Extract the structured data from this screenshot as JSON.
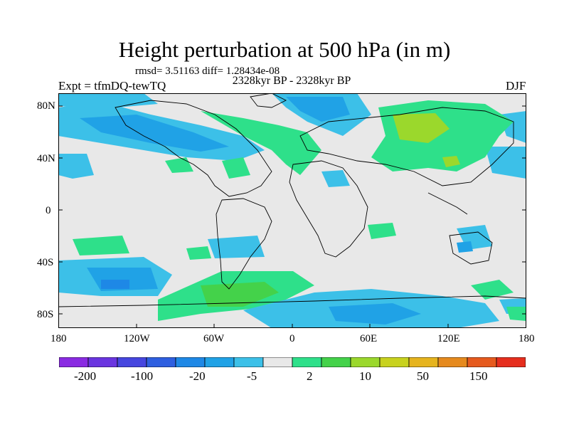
{
  "header": {
    "title": "Height perturbation at 500 hPa (in m)",
    "rmsd": "rmsd= 3.51163 diff= 1.28434e-08",
    "subtitle": "2328kyr BP - 2328kyr BP",
    "experiment": "Expt = tfmDQ-tewTQ",
    "season": "DJF"
  },
  "axes": {
    "lat_ticks": [
      "80N",
      "40N",
      "0",
      "40S",
      "80S"
    ],
    "lon_ticks": [
      "180",
      "120W",
      "60W",
      "0",
      "60E",
      "120E",
      "180"
    ]
  },
  "colorbar": {
    "colors": [
      "#8a2be2",
      "#6a35e0",
      "#4646df",
      "#2e5fe0",
      "#1e88e6",
      "#20a2e6",
      "#3cc0e8",
      "#e8e8e8",
      "#2ee08a",
      "#44d24a",
      "#9bd82c",
      "#c8d21e",
      "#e6b41e",
      "#e68a1e",
      "#e65a1e",
      "#e62e1e"
    ],
    "labels": [
      "-200",
      "-100",
      "-20",
      "-5",
      "2",
      "10",
      "50",
      "150"
    ]
  }
}
